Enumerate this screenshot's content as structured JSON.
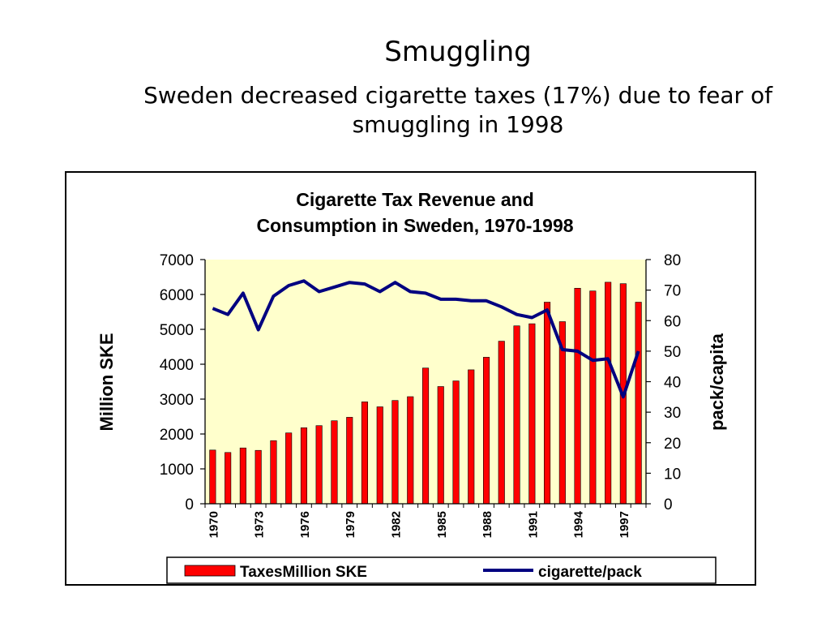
{
  "slide": {
    "title": "Smuggling",
    "subtitle": "Sweden decreased cigarette taxes (17%) due to fear of smuggling in 1998"
  },
  "colors": {
    "bar": "#ff0000",
    "line": "#000080",
    "plot_bg": "#ffffcc"
  },
  "chart_data": {
    "type": "bar",
    "title_lines": [
      "Cigarette Tax Revenue and",
      "Consumption in Sweden, 1970-1998"
    ],
    "ylabel": "Million SKE",
    "y2label": "pack/capita",
    "ylim": [
      0,
      7000
    ],
    "y2lim": [
      0,
      80
    ],
    "yticks": [
      "0",
      "1000",
      "2000",
      "3000",
      "4000",
      "5000",
      "6000",
      "7000"
    ],
    "y2ticks": [
      "0",
      "10",
      "20",
      "30",
      "40",
      "50",
      "60",
      "70",
      "80"
    ],
    "categories": [
      "1970",
      "1971",
      "1972",
      "1973",
      "1974",
      "1975",
      "1976",
      "1977",
      "1978",
      "1979",
      "1980",
      "1981",
      "1982",
      "1983",
      "1984",
      "1985",
      "1986",
      "1987",
      "1988",
      "1989",
      "1990",
      "1991",
      "1992",
      "1993",
      "1994",
      "1995",
      "1996",
      "1997",
      "1998"
    ],
    "xtick_labels": [
      "1970",
      "1973",
      "1976",
      "1979",
      "1982",
      "1985",
      "1988",
      "1991",
      "1994",
      "1997"
    ],
    "series": [
      {
        "name": "TaxesMillion SKE",
        "type": "bar",
        "axis": "left",
        "values": [
          1540,
          1470,
          1600,
          1530,
          1810,
          2030,
          2180,
          2240,
          2380,
          2480,
          2920,
          2780,
          2960,
          3070,
          3890,
          3360,
          3520,
          3840,
          4200,
          4660,
          5100,
          5160,
          5780,
          5220,
          6180,
          6100,
          6350,
          6310,
          5780
        ]
      },
      {
        "name": "cigarette/pack",
        "type": "line",
        "axis": "right",
        "values": [
          64,
          62,
          69,
          57,
          68,
          71.5,
          73,
          69.5,
          71,
          72.5,
          72,
          69.5,
          72.5,
          69.5,
          69,
          67,
          67,
          66.5,
          66.5,
          64.5,
          62,
          61,
          63.5,
          50.5,
          50,
          47,
          47.5,
          35,
          50
        ]
      }
    ],
    "legend_position": "bottom",
    "grid": false
  }
}
